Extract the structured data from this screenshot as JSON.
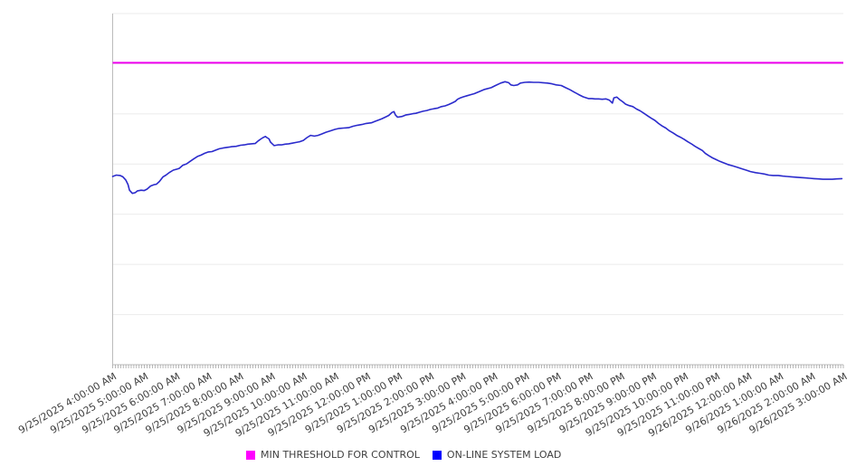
{
  "chart_data": {
    "type": "line",
    "title": "",
    "xlabel": "",
    "ylabel": "",
    "y_axis": {
      "labels_visible": false,
      "gridline_divisions": 7,
      "ylim_pct": [
        0,
        100
      ],
      "grid": true
    },
    "x_minor_ticks_per_hour": 12,
    "legend_position": "bottom",
    "x_labels": [
      "9/25/2025 4:00:00 AM",
      "9/25/2025 5:00:00 AM",
      "9/25/2025 6:00:00 AM",
      "9/25/2025 7:00:00 AM",
      "9/25/2025 8:00:00 AM",
      "9/25/2025 9:00:00 AM",
      "9/25/2025 10:00:00 AM",
      "9/25/2025 11:00:00 AM",
      "9/25/2025 12:00:00 PM",
      "9/25/2025 1:00:00 PM",
      "9/25/2025 2:00:00 PM",
      "9/25/2025 3:00:00 PM",
      "9/25/2025 4:00:00 PM",
      "9/25/2025 5:00:00 PM",
      "9/25/2025 6:00:00 PM",
      "9/25/2025 7:00:00 PM",
      "9/25/2025 8:00:00 PM",
      "9/25/2025 9:00:00 PM",
      "9/25/2025 10:00:00 PM",
      "9/25/2025 11:00:00 PM",
      "9/26/2025 12:00:00 AM",
      "9/26/2025 1:00:00 AM",
      "9/26/2025 2:00:00 AM",
      "9/26/2025 3:00:00 AM"
    ],
    "series": [
      {
        "name": "MIN THRESHOLD FOR CONTROL",
        "type": "threshold_hline",
        "color": "#ee00ee",
        "value_pct": 86.0
      },
      {
        "name": "ON-LINE SYSTEM LOAD",
        "type": "line",
        "color": "#2b2bcc",
        "points_pct": [
          [
            0.0,
            53.6
          ],
          [
            0.005,
            54.0
          ],
          [
            0.01,
            53.9
          ],
          [
            0.014,
            53.5
          ],
          [
            0.018,
            52.6
          ],
          [
            0.021,
            51.3
          ],
          [
            0.023,
            49.7
          ],
          [
            0.027,
            48.8
          ],
          [
            0.031,
            49.0
          ],
          [
            0.034,
            49.5
          ],
          [
            0.039,
            49.7
          ],
          [
            0.043,
            49.6
          ],
          [
            0.047,
            50.0
          ],
          [
            0.052,
            50.9
          ],
          [
            0.057,
            51.3
          ],
          [
            0.06,
            51.4
          ],
          [
            0.064,
            52.2
          ],
          [
            0.069,
            53.5
          ],
          [
            0.073,
            54.0
          ],
          [
            0.078,
            54.8
          ],
          [
            0.083,
            55.4
          ],
          [
            0.088,
            55.7
          ],
          [
            0.091,
            55.9
          ],
          [
            0.096,
            56.8
          ],
          [
            0.101,
            57.2
          ],
          [
            0.106,
            57.9
          ],
          [
            0.111,
            58.6
          ],
          [
            0.116,
            59.3
          ],
          [
            0.121,
            59.7
          ],
          [
            0.126,
            60.2
          ],
          [
            0.131,
            60.6
          ],
          [
            0.136,
            60.7
          ],
          [
            0.141,
            61.1
          ],
          [
            0.146,
            61.5
          ],
          [
            0.151,
            61.7
          ],
          [
            0.157,
            61.9
          ],
          [
            0.163,
            62.1
          ],
          [
            0.169,
            62.2
          ],
          [
            0.175,
            62.5
          ],
          [
            0.18,
            62.6
          ],
          [
            0.185,
            62.8
          ],
          [
            0.19,
            62.9
          ],
          [
            0.195,
            63.0
          ],
          [
            0.199,
            63.7
          ],
          [
            0.203,
            64.3
          ],
          [
            0.206,
            64.7
          ],
          [
            0.209,
            65.0
          ],
          [
            0.211,
            64.7
          ],
          [
            0.214,
            64.3
          ],
          [
            0.216,
            63.4
          ],
          [
            0.219,
            62.8
          ],
          [
            0.221,
            62.4
          ],
          [
            0.226,
            62.6
          ],
          [
            0.231,
            62.6
          ],
          [
            0.236,
            62.8
          ],
          [
            0.241,
            62.9
          ],
          [
            0.246,
            63.1
          ],
          [
            0.251,
            63.3
          ],
          [
            0.256,
            63.5
          ],
          [
            0.261,
            63.9
          ],
          [
            0.266,
            64.7
          ],
          [
            0.271,
            65.3
          ],
          [
            0.276,
            65.1
          ],
          [
            0.281,
            65.3
          ],
          [
            0.286,
            65.7
          ],
          [
            0.292,
            66.2
          ],
          [
            0.298,
            66.6
          ],
          [
            0.304,
            67.0
          ],
          [
            0.31,
            67.3
          ],
          [
            0.316,
            67.4
          ],
          [
            0.323,
            67.5
          ],
          [
            0.329,
            67.9
          ],
          [
            0.335,
            68.2
          ],
          [
            0.341,
            68.4
          ],
          [
            0.347,
            68.7
          ],
          [
            0.354,
            68.9
          ],
          [
            0.359,
            69.3
          ],
          [
            0.364,
            69.7
          ],
          [
            0.368,
            70.0
          ],
          [
            0.373,
            70.5
          ],
          [
            0.378,
            71.0
          ],
          [
            0.382,
            71.8
          ],
          [
            0.385,
            72.1
          ],
          [
            0.387,
            71.1
          ],
          [
            0.39,
            70.5
          ],
          [
            0.396,
            70.7
          ],
          [
            0.401,
            71.1
          ],
          [
            0.406,
            71.3
          ],
          [
            0.411,
            71.5
          ],
          [
            0.415,
            71.6
          ],
          [
            0.42,
            71.9
          ],
          [
            0.425,
            72.2
          ],
          [
            0.43,
            72.4
          ],
          [
            0.435,
            72.7
          ],
          [
            0.44,
            72.9
          ],
          [
            0.445,
            73.1
          ],
          [
            0.45,
            73.5
          ],
          [
            0.455,
            73.7
          ],
          [
            0.46,
            74.1
          ],
          [
            0.465,
            74.6
          ],
          [
            0.469,
            75.0
          ],
          [
            0.472,
            75.6
          ],
          [
            0.476,
            76.0
          ],
          [
            0.48,
            76.3
          ],
          [
            0.485,
            76.6
          ],
          [
            0.49,
            76.9
          ],
          [
            0.495,
            77.2
          ],
          [
            0.502,
            77.8
          ],
          [
            0.509,
            78.4
          ],
          [
            0.518,
            78.9
          ],
          [
            0.524,
            79.5
          ],
          [
            0.531,
            80.2
          ],
          [
            0.537,
            80.6
          ],
          [
            0.542,
            80.3
          ],
          [
            0.545,
            79.7
          ],
          [
            0.549,
            79.5
          ],
          [
            0.554,
            79.7
          ],
          [
            0.558,
            80.2
          ],
          [
            0.564,
            80.4
          ],
          [
            0.57,
            80.5
          ],
          [
            0.576,
            80.4
          ],
          [
            0.583,
            80.4
          ],
          [
            0.589,
            80.3
          ],
          [
            0.595,
            80.2
          ],
          [
            0.601,
            80.0
          ],
          [
            0.607,
            79.7
          ],
          [
            0.614,
            79.5
          ],
          [
            0.62,
            78.9
          ],
          [
            0.626,
            78.3
          ],
          [
            0.632,
            77.6
          ],
          [
            0.638,
            76.9
          ],
          [
            0.644,
            76.3
          ],
          [
            0.651,
            75.8
          ],
          [
            0.656,
            75.8
          ],
          [
            0.66,
            75.7
          ],
          [
            0.665,
            75.7
          ],
          [
            0.67,
            75.6
          ],
          [
            0.675,
            75.7
          ],
          [
            0.68,
            75.3
          ],
          [
            0.684,
            74.5
          ],
          [
            0.686,
            76.0
          ],
          [
            0.69,
            76.2
          ],
          [
            0.694,
            75.5
          ],
          [
            0.698,
            74.9
          ],
          [
            0.702,
            74.2
          ],
          [
            0.707,
            73.8
          ],
          [
            0.712,
            73.5
          ],
          [
            0.717,
            72.8
          ],
          [
            0.722,
            72.3
          ],
          [
            0.727,
            71.6
          ],
          [
            0.732,
            70.9
          ],
          [
            0.737,
            70.2
          ],
          [
            0.742,
            69.6
          ],
          [
            0.747,
            68.7
          ],
          [
            0.752,
            68.0
          ],
          [
            0.757,
            67.4
          ],
          [
            0.762,
            66.6
          ],
          [
            0.767,
            66.0
          ],
          [
            0.772,
            65.3
          ],
          [
            0.777,
            64.8
          ],
          [
            0.782,
            64.2
          ],
          [
            0.787,
            63.5
          ],
          [
            0.792,
            62.9
          ],
          [
            0.797,
            62.2
          ],
          [
            0.802,
            61.6
          ],
          [
            0.807,
            61.0
          ],
          [
            0.811,
            60.2
          ],
          [
            0.816,
            59.5
          ],
          [
            0.821,
            58.9
          ],
          [
            0.826,
            58.4
          ],
          [
            0.831,
            57.9
          ],
          [
            0.836,
            57.5
          ],
          [
            0.842,
            57.0
          ],
          [
            0.849,
            56.6
          ],
          [
            0.855,
            56.2
          ],
          [
            0.861,
            55.8
          ],
          [
            0.867,
            55.4
          ],
          [
            0.873,
            55.0
          ],
          [
            0.88,
            54.7
          ],
          [
            0.886,
            54.5
          ],
          [
            0.892,
            54.3
          ],
          [
            0.898,
            54.0
          ],
          [
            0.904,
            53.9
          ],
          [
            0.911,
            53.9
          ],
          [
            0.917,
            53.7
          ],
          [
            0.923,
            53.6
          ],
          [
            0.929,
            53.5
          ],
          [
            0.935,
            53.4
          ],
          [
            0.941,
            53.3
          ],
          [
            0.948,
            53.2
          ],
          [
            0.954,
            53.1
          ],
          [
            0.96,
            53.0
          ],
          [
            0.966,
            52.9
          ],
          [
            0.972,
            52.8
          ],
          [
            0.979,
            52.8
          ],
          [
            0.985,
            52.8
          ],
          [
            0.991,
            52.9
          ],
          [
            0.998,
            53.0
          ]
        ]
      }
    ]
  },
  "legend": {
    "items": [
      {
        "label": "MIN THRESHOLD FOR CONTROL",
        "swatch_color": "#ff00ff"
      },
      {
        "label": "ON-LINE SYSTEM LOAD",
        "swatch_color": "#0000ff"
      }
    ]
  },
  "colors": {
    "threshold_line": "#ee00ee",
    "load_line": "#2b2bcc",
    "gridline": "#ebebeb",
    "axis": "#bbbbbb",
    "tick": "#999999",
    "label_text": "#3f3f3f"
  }
}
